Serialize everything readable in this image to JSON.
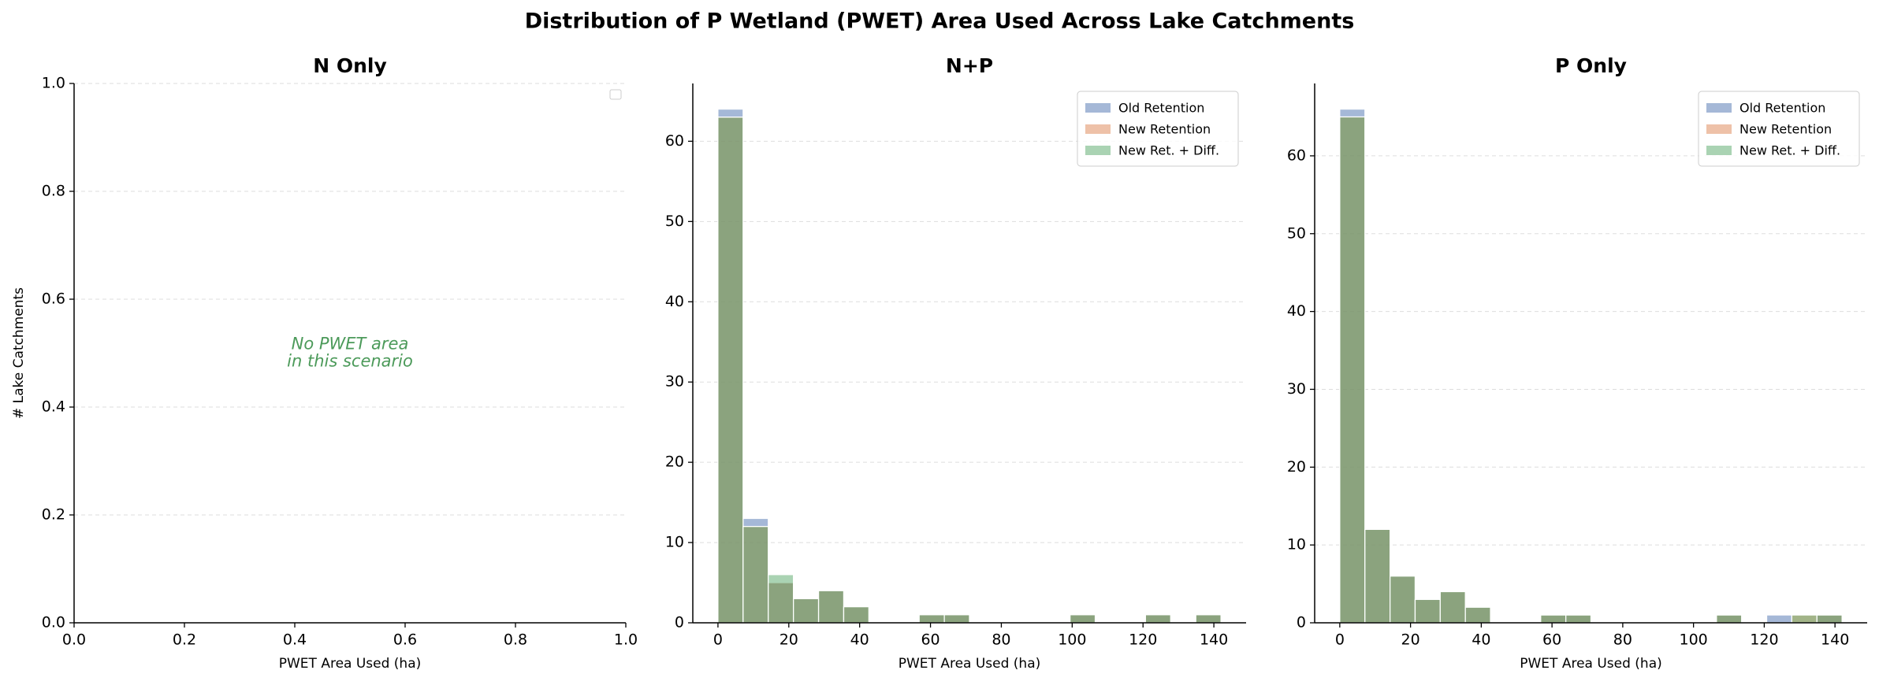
{
  "title": "Distribution of P Wetland (PWET) Area Used Across Lake Catchments",
  "chart_data": [
    {
      "type": "histogram",
      "title": "N Only",
      "xlabel": "PWET Area Used (ha)",
      "ylabel": "# Lake Catchments",
      "xlim": [
        0,
        1
      ],
      "ylim": [
        0,
        1
      ],
      "xticks": [
        {
          "value": 0,
          "label": "0.0"
        },
        {
          "value": 0.2,
          "label": "0.2"
        },
        {
          "value": 0.4,
          "label": "0.4"
        },
        {
          "value": 0.6,
          "label": "0.6"
        },
        {
          "value": 0.8,
          "label": "0.8"
        },
        {
          "value": 1,
          "label": "1.0"
        }
      ],
      "yticks": [
        {
          "value": 0,
          "label": "0.0"
        },
        {
          "value": 0.2,
          "label": "0.2"
        },
        {
          "value": 0.4,
          "label": "0.4"
        },
        {
          "value": 0.6,
          "label": "0.6"
        },
        {
          "value": 0.8,
          "label": "0.8"
        },
        {
          "value": 1,
          "label": "1.0"
        }
      ],
      "grid": "y",
      "legend": "upper right",
      "series": [],
      "annotation": [
        "No PWET area",
        "in this scenario"
      ]
    },
    {
      "type": "histogram",
      "title": "N+P",
      "xlabel": "PWET Area Used (ha)",
      "bins": [
        0,
        7.1,
        14.2,
        21.3,
        28.4,
        35.5,
        42.6,
        49.7,
        56.8,
        63.9,
        71,
        78.1,
        85.2,
        92.3,
        99.4,
        106.5,
        113.6,
        120.7,
        127.8,
        134.9,
        142
      ],
      "xlim": [
        -7.1,
        149.1
      ],
      "ylim": [
        0,
        67.2
      ],
      "xticks": [
        0,
        20,
        40,
        60,
        80,
        100,
        120,
        140
      ],
      "yticks": [
        0,
        10,
        20,
        30,
        40,
        50,
        60
      ],
      "grid": "y",
      "legend": "upper right",
      "series": [
        {
          "name": "Old Retention",
          "color": "#4c72b0",
          "values": [
            64,
            13,
            5,
            3,
            4,
            2,
            0,
            0,
            1,
            1,
            0,
            0,
            0,
            0,
            1,
            0,
            0,
            1,
            0,
            1
          ]
        },
        {
          "name": "New Retention",
          "color": "#dd8452",
          "values": [
            63,
            12,
            5,
            3,
            4,
            2,
            0,
            0,
            1,
            1,
            0,
            0,
            0,
            0,
            1,
            0,
            0,
            1,
            0,
            1
          ]
        },
        {
          "name": "New Ret. + Diff.",
          "color": "#55a868",
          "values": [
            63,
            12,
            6,
            3,
            4,
            2,
            0,
            0,
            1,
            1,
            0,
            0,
            0,
            0,
            1,
            0,
            0,
            1,
            0,
            1
          ]
        }
      ]
    },
    {
      "type": "histogram",
      "title": "P Only",
      "xlabel": "PWET Area Used (ha)",
      "bins": [
        0,
        7.1,
        14.2,
        21.3,
        28.4,
        35.5,
        42.6,
        49.7,
        56.8,
        63.9,
        71,
        78.1,
        85.2,
        92.3,
        99.4,
        106.5,
        113.6,
        120.7,
        127.8,
        134.9,
        142
      ],
      "xlim": [
        -7.1,
        149.1
      ],
      "ylim": [
        0,
        69.3
      ],
      "xticks": [
        0,
        20,
        40,
        60,
        80,
        100,
        120,
        140
      ],
      "yticks": [
        0,
        10,
        20,
        30,
        40,
        50,
        60
      ],
      "grid": "y",
      "legend": "upper right",
      "series": [
        {
          "name": "Old Retention",
          "color": "#4c72b0",
          "values": [
            66,
            12,
            6,
            3,
            4,
            2,
            0,
            0,
            1,
            1,
            0,
            0,
            0,
            0,
            0,
            1,
            0,
            1,
            0,
            1
          ]
        },
        {
          "name": "New Retention",
          "color": "#dd8452",
          "values": [
            65,
            12,
            6,
            3,
            4,
            2,
            0,
            0,
            1,
            1,
            0,
            0,
            0,
            0,
            0,
            1,
            0,
            0,
            1,
            1
          ]
        },
        {
          "name": "New Ret. + Diff.",
          "color": "#55a868",
          "values": [
            65,
            12,
            6,
            3,
            4,
            2,
            0,
            0,
            1,
            1,
            0,
            0,
            0,
            0,
            0,
            1,
            0,
            0,
            1,
            1
          ]
        }
      ]
    }
  ]
}
